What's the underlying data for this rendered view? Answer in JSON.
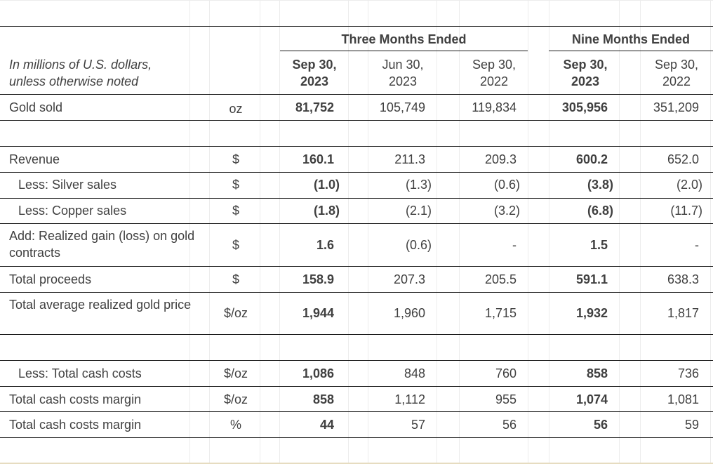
{
  "header": {
    "note": "In millions of U.S. dollars, unless otherwise noted",
    "group_three": "Three Months Ended",
    "group_nine": "Nine Months Ended",
    "columns": [
      {
        "line1": "Sep 30,",
        "line2": "2023",
        "bold": true
      },
      {
        "line1": "Jun 30,",
        "line2": "2023",
        "bold": false
      },
      {
        "line1": "Sep 30,",
        "line2": "2022",
        "bold": false
      },
      {
        "line1": "Sep 30,",
        "line2": "2023",
        "bold": true
      },
      {
        "line1": "Sep 30,",
        "line2": "2022",
        "bold": false
      }
    ]
  },
  "rows": {
    "gold_sold": {
      "label": "Gold sold",
      "unit": "oz",
      "values": [
        "81,752",
        "105,749",
        "119,834",
        "305,956",
        "351,209"
      ]
    },
    "revenue": {
      "label": "Revenue",
      "unit": "$",
      "values": [
        "160.1",
        "211.3",
        "209.3",
        "600.2",
        "652.0"
      ]
    },
    "silver": {
      "label": "Less: Silver sales",
      "unit": "$",
      "values": [
        "(1.0)",
        "(1.3)",
        "(0.6)",
        "(3.8)",
        "(2.0)"
      ]
    },
    "copper": {
      "label": "Less: Copper sales",
      "unit": "$",
      "values": [
        "(1.8)",
        "(2.1)",
        "(3.2)",
        "(6.8)",
        "(11.7)"
      ]
    },
    "realized": {
      "label": "Add: Realized gain (loss) on gold contracts",
      "unit": "$",
      "values": [
        "1.6",
        "(0.6)",
        "-",
        "1.5",
        "-"
      ]
    },
    "proceeds": {
      "label": "Total proceeds",
      "unit": "$",
      "values": [
        "158.9",
        "207.3",
        "205.5",
        "591.1",
        "638.3"
      ]
    },
    "avg_price": {
      "label": "Total average realized gold price",
      "unit": "$/oz",
      "values": [
        "1,944",
        "1,960",
        "1,715",
        "1,932",
        "1,817"
      ]
    },
    "cash_costs": {
      "label": "Less: Total cash costs",
      "unit": "$/oz",
      "values": [
        "1,086",
        "848",
        "760",
        "858",
        "736"
      ]
    },
    "margin": {
      "label": "Total cash costs margin",
      "unit": "$/oz",
      "values": [
        "858",
        "1,112",
        "955",
        "1,074",
        "1,081"
      ]
    },
    "margin_pct": {
      "label": "Total cash costs margin",
      "unit": "%",
      "values": [
        "44",
        "57",
        "56",
        "56",
        "59"
      ]
    }
  }
}
